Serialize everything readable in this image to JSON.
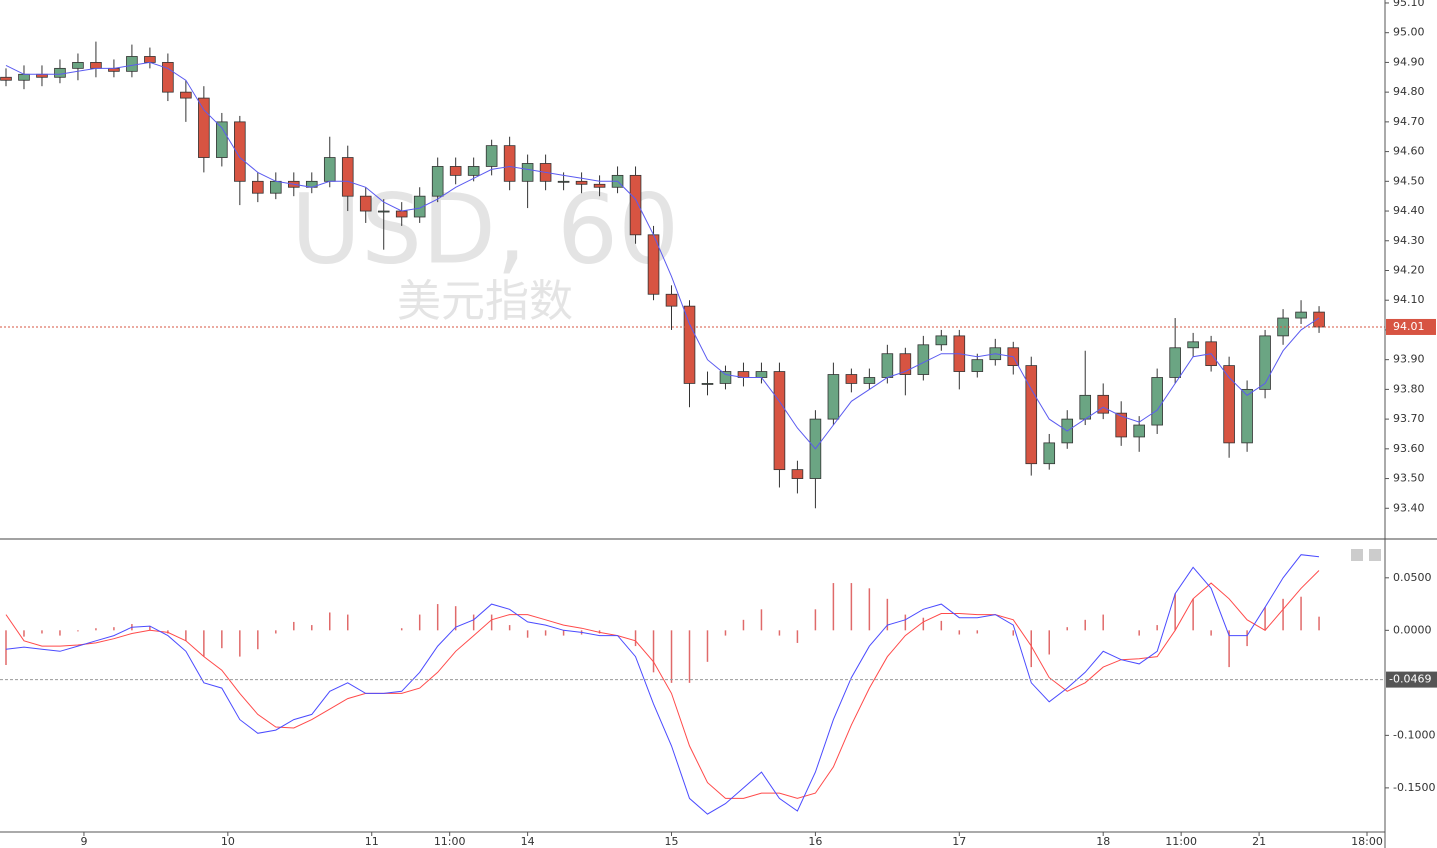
{
  "chart_data": [
    {
      "type": "candlestick",
      "title": "USD, 60",
      "subtitle": "美元指数",
      "x": [
        1,
        4,
        7,
        10,
        13,
        16,
        19,
        22,
        25,
        28,
        31,
        34,
        37,
        40,
        43,
        46,
        49,
        52,
        55,
        58,
        61,
        64,
        67,
        70,
        73,
        76,
        79,
        82,
        85,
        88,
        91,
        94,
        97,
        100,
        103,
        106,
        109,
        112,
        115,
        118,
        121,
        124,
        127,
        130,
        133,
        136,
        139,
        142,
        145,
        148,
        151,
        154,
        157,
        160,
        163,
        166,
        169,
        172,
        175,
        178,
        181,
        184,
        187,
        190,
        193,
        196,
        199,
        202,
        205,
        208,
        211,
        214,
        217,
        220
      ],
      "open": [
        94.85,
        94.84,
        94.86,
        94.85,
        94.88,
        94.9,
        94.88,
        94.87,
        94.92,
        94.9,
        94.8,
        94.78,
        94.58,
        94.7,
        94.5,
        94.46,
        94.5,
        94.48,
        94.5,
        94.58,
        94.45,
        94.4,
        94.4,
        94.38,
        94.45,
        94.55,
        94.52,
        94.55,
        94.62,
        94.5,
        94.56,
        94.5,
        94.5,
        94.49,
        94.48,
        94.52,
        94.32,
        94.12,
        94.08,
        93.82,
        93.82,
        93.86,
        93.84,
        93.86,
        93.53,
        93.5,
        93.7,
        93.85,
        93.82,
        93.84,
        93.92,
        93.85,
        93.95,
        93.98,
        93.86,
        93.9,
        93.94,
        93.88,
        93.55,
        93.62,
        93.7,
        93.78,
        93.72,
        93.64,
        93.68,
        93.84,
        93.94,
        93.96,
        93.88,
        93.62,
        93.8,
        93.98,
        94.04,
        94.06
      ],
      "high": [
        94.88,
        94.89,
        94.89,
        94.91,
        94.93,
        94.97,
        94.91,
        94.96,
        94.95,
        94.93,
        94.84,
        94.82,
        94.73,
        94.72,
        94.53,
        94.53,
        94.53,
        94.53,
        94.65,
        94.62,
        94.48,
        94.44,
        94.43,
        94.48,
        94.58,
        94.58,
        94.58,
        94.64,
        94.65,
        94.59,
        94.59,
        94.53,
        94.53,
        94.52,
        94.55,
        94.55,
        94.35,
        94.15,
        94.1,
        93.86,
        93.88,
        93.89,
        93.89,
        93.89,
        93.56,
        93.73,
        93.89,
        93.87,
        93.87,
        93.95,
        93.94,
        93.98,
        94.0,
        94.0,
        93.92,
        93.97,
        93.96,
        93.91,
        93.65,
        93.73,
        93.93,
        93.82,
        93.76,
        93.71,
        93.87,
        94.04,
        93.99,
        93.98,
        93.91,
        93.83,
        94.0,
        94.07,
        94.1,
        94.08
      ],
      "low": [
        94.82,
        94.81,
        94.82,
        94.83,
        94.84,
        94.85,
        94.85,
        94.85,
        94.88,
        94.77,
        94.7,
        94.53,
        94.55,
        94.42,
        94.43,
        94.44,
        94.45,
        94.46,
        94.48,
        94.4,
        94.36,
        94.27,
        94.35,
        94.36,
        94.43,
        94.49,
        94.5,
        94.52,
        94.47,
        94.41,
        94.47,
        94.47,
        94.46,
        94.45,
        94.46,
        94.29,
        94.1,
        94.0,
        93.74,
        93.78,
        93.8,
        93.81,
        93.82,
        93.47,
        93.45,
        93.4,
        93.68,
        93.79,
        93.8,
        93.82,
        93.78,
        93.83,
        93.93,
        93.8,
        93.84,
        93.88,
        93.85,
        93.51,
        93.53,
        93.6,
        93.68,
        93.7,
        93.61,
        93.59,
        93.65,
        93.82,
        93.91,
        93.86,
        93.57,
        93.59,
        93.77,
        93.95,
        94.02,
        93.99
      ],
      "close": [
        94.84,
        94.86,
        94.85,
        94.88,
        94.9,
        94.88,
        94.87,
        94.92,
        94.9,
        94.8,
        94.78,
        94.58,
        94.7,
        94.5,
        94.46,
        94.5,
        94.48,
        94.5,
        94.58,
        94.45,
        94.4,
        94.4,
        94.38,
        94.45,
        94.55,
        94.52,
        94.55,
        94.62,
        94.5,
        94.56,
        94.5,
        94.5,
        94.49,
        94.48,
        94.52,
        94.32,
        94.12,
        94.08,
        93.82,
        93.82,
        93.86,
        93.84,
        93.86,
        93.53,
        93.5,
        93.7,
        93.85,
        93.82,
        93.84,
        93.92,
        93.85,
        93.95,
        93.98,
        93.86,
        93.9,
        93.94,
        93.88,
        93.55,
        93.62,
        93.7,
        93.78,
        93.72,
        93.64,
        93.68,
        93.84,
        93.94,
        93.96,
        93.88,
        93.62,
        93.8,
        93.98,
        94.04,
        94.06,
        94.01
      ],
      "ma": {
        "color": "#5b5bf0",
        "values": [
          94.89,
          94.86,
          94.86,
          94.86,
          94.87,
          94.88,
          94.88,
          94.89,
          94.9,
          94.88,
          94.84,
          94.74,
          94.68,
          94.58,
          94.53,
          94.5,
          94.49,
          94.48,
          94.5,
          94.5,
          94.48,
          94.43,
          94.4,
          94.41,
          94.44,
          94.48,
          94.51,
          94.54,
          94.55,
          94.54,
          94.53,
          94.52,
          94.51,
          94.5,
          94.5,
          94.44,
          94.32,
          94.18,
          94.02,
          93.9,
          93.85,
          93.84,
          93.84,
          93.76,
          93.67,
          93.6,
          93.68,
          93.76,
          93.8,
          93.84,
          93.86,
          93.89,
          93.92,
          93.92,
          93.91,
          93.92,
          93.91,
          93.8,
          93.7,
          93.66,
          93.7,
          93.74,
          93.71,
          93.69,
          93.73,
          93.82,
          93.91,
          93.92,
          93.84,
          93.78,
          93.82,
          93.93,
          94.0,
          94.04
        ]
      },
      "up_color": "#6ba583",
      "down_color": "#d75442",
      "xlim": [
        0,
        231
      ],
      "ylim": [
        93.3,
        95.11
      ],
      "yticks": [
        {
          "value": 95.1,
          "label": "95.10"
        },
        {
          "value": 95.0,
          "label": "95.00"
        },
        {
          "value": 94.9,
          "label": "94.90"
        },
        {
          "value": 94.8,
          "label": "94.80"
        },
        {
          "value": 94.7,
          "label": "94.70"
        },
        {
          "value": 94.6,
          "label": "94.60"
        },
        {
          "value": 94.5,
          "label": "94.50"
        },
        {
          "value": 94.4,
          "label": "94.40"
        },
        {
          "value": 94.3,
          "label": "94.30"
        },
        {
          "value": 94.2,
          "label": "94.20"
        },
        {
          "value": 94.1,
          "label": "94.10"
        },
        {
          "value": 94.0,
          "label": "94.00"
        },
        {
          "value": 93.9,
          "label": "93.90"
        },
        {
          "value": 93.8,
          "label": "93.80"
        },
        {
          "value": 93.7,
          "label": "93.70"
        },
        {
          "value": 93.6,
          "label": "93.60"
        },
        {
          "value": 93.5,
          "label": "93.50"
        },
        {
          "value": 93.4,
          "label": "93.40"
        }
      ],
      "grid": true,
      "price_label": 94.01
    },
    {
      "type": "macd",
      "x": [
        1,
        4,
        7,
        10,
        13,
        16,
        19,
        22,
        25,
        28,
        31,
        34,
        37,
        40,
        43,
        46,
        49,
        52,
        55,
        58,
        61,
        64,
        67,
        70,
        73,
        76,
        79,
        82,
        85,
        88,
        91,
        94,
        97,
        100,
        103,
        106,
        109,
        112,
        115,
        118,
        121,
        124,
        127,
        130,
        133,
        136,
        139,
        142,
        145,
        148,
        151,
        154,
        157,
        160,
        163,
        166,
        169,
        172,
        175,
        178,
        181,
        184,
        187,
        190,
        193,
        196,
        199,
        202,
        205,
        208,
        211,
        214,
        217,
        220
      ],
      "macd": {
        "color": "#4b4bff",
        "values": [
          -0.018,
          -0.016,
          -0.018,
          -0.02,
          -0.015,
          -0.01,
          -0.005,
          0.003,
          0.004,
          -0.005,
          -0.02,
          -0.05,
          -0.055,
          -0.085,
          -0.098,
          -0.095,
          -0.085,
          -0.08,
          -0.058,
          -0.05,
          -0.06,
          -0.06,
          -0.058,
          -0.04,
          -0.015,
          0.003,
          0.01,
          0.025,
          0.02,
          0.008,
          0.005,
          0.0,
          -0.002,
          -0.005,
          -0.005,
          -0.025,
          -0.07,
          -0.11,
          -0.16,
          -0.175,
          -0.165,
          -0.15,
          -0.135,
          -0.16,
          -0.172,
          -0.135,
          -0.085,
          -0.045,
          -0.015,
          0.005,
          0.01,
          0.02,
          0.025,
          0.012,
          0.012,
          0.015,
          0.005,
          -0.05,
          -0.068,
          -0.055,
          -0.04,
          -0.02,
          -0.028,
          -0.032,
          -0.02,
          0.035,
          0.06,
          0.04,
          -0.005,
          -0.005,
          0.022,
          0.05,
          0.072,
          0.07
        ]
      },
      "signal": {
        "color": "#ff4a4a",
        "values": [
          0.015,
          -0.01,
          -0.015,
          -0.015,
          -0.014,
          -0.012,
          -0.008,
          -0.003,
          0.0,
          -0.002,
          -0.01,
          -0.025,
          -0.038,
          -0.06,
          -0.08,
          -0.092,
          -0.093,
          -0.085,
          -0.075,
          -0.065,
          -0.06,
          -0.06,
          -0.06,
          -0.055,
          -0.04,
          -0.02,
          -0.005,
          0.01,
          0.015,
          0.015,
          0.01,
          0.005,
          0.002,
          -0.002,
          -0.005,
          -0.01,
          -0.03,
          -0.06,
          -0.11,
          -0.145,
          -0.16,
          -0.16,
          -0.155,
          -0.155,
          -0.16,
          -0.155,
          -0.13,
          -0.09,
          -0.055,
          -0.025,
          -0.005,
          0.008,
          0.016,
          0.016,
          0.015,
          0.015,
          0.01,
          -0.015,
          -0.045,
          -0.058,
          -0.05,
          -0.035,
          -0.028,
          -0.027,
          -0.025,
          0.0,
          0.03,
          0.045,
          0.03,
          0.01,
          0.0,
          0.02,
          0.04,
          0.057
        ]
      },
      "histogram": {
        "color": "#e06a6a",
        "values": [
          -0.033,
          -0.006,
          -0.003,
          -0.005,
          -0.001,
          0.002,
          0.003,
          0.006,
          0.004,
          -0.003,
          -0.01,
          -0.025,
          -0.017,
          -0.025,
          -0.018,
          -0.003,
          0.008,
          0.005,
          0.017,
          0.015,
          0.0,
          0.0,
          0.002,
          0.015,
          0.025,
          0.023,
          0.015,
          0.015,
          0.005,
          -0.007,
          -0.005,
          -0.005,
          -0.004,
          -0.003,
          0.0,
          -0.015,
          -0.04,
          -0.05,
          -0.05,
          -0.03,
          -0.005,
          0.01,
          0.02,
          -0.005,
          -0.012,
          0.02,
          0.045,
          0.045,
          0.04,
          0.03,
          0.015,
          0.012,
          0.009,
          -0.004,
          -0.003,
          0.0,
          -0.005,
          -0.035,
          -0.023,
          0.003,
          0.01,
          0.015,
          0.0,
          -0.005,
          0.005,
          0.035,
          0.03,
          -0.005,
          -0.035,
          -0.015,
          0.022,
          0.03,
          0.032,
          0.013
        ]
      },
      "xlim": [
        0,
        231
      ],
      "ylim": [
        -0.192,
        0.086
      ],
      "yticks": [
        {
          "value": 0.05,
          "label": "0.0500"
        },
        {
          "value": 0,
          "label": "0.0000"
        },
        {
          "value": -0.1,
          "label": "-0.1000"
        },
        {
          "value": -0.15,
          "label": "-0.1500"
        }
      ],
      "xticks": [
        {
          "value": 14,
          "label": "9"
        },
        {
          "value": 38,
          "label": "10"
        },
        {
          "value": 62,
          "label": "11"
        },
        {
          "value": 75,
          "label": "11:00"
        },
        {
          "value": 88,
          "label": "14"
        },
        {
          "value": 112,
          "label": "15"
        },
        {
          "value": 136,
          "label": "16"
        },
        {
          "value": 160,
          "label": "17"
        },
        {
          "value": 184,
          "label": "18"
        },
        {
          "value": 197,
          "label": "11:00"
        },
        {
          "value": 210,
          "label": "21"
        },
        {
          "value": 228,
          "label": "18:00"
        }
      ],
      "grid": true,
      "value_label": -0.0469
    }
  ]
}
